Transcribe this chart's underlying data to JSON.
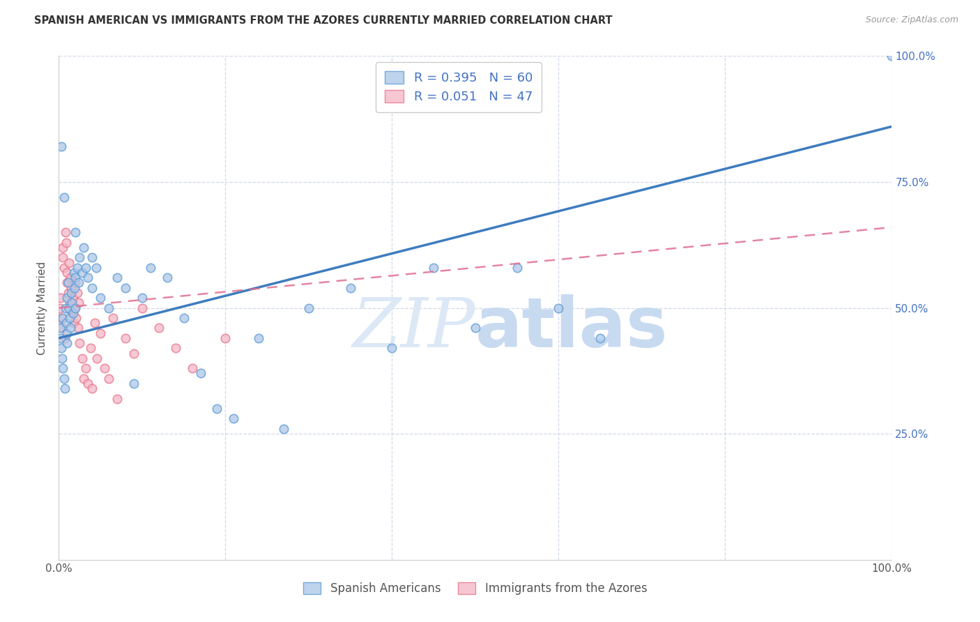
{
  "title": "SPANISH AMERICAN VS IMMIGRANTS FROM THE AZORES CURRENTLY MARRIED CORRELATION CHART",
  "source": "Source: ZipAtlas.com",
  "ylabel": "Currently Married",
  "right_yticks": [
    0.0,
    0.25,
    0.5,
    0.75,
    1.0
  ],
  "right_yticklabels": [
    "",
    "25.0%",
    "50.0%",
    "75.0%",
    "100.0%"
  ],
  "xticks": [
    0.0,
    0.2,
    0.4,
    0.6,
    0.8,
    1.0
  ],
  "xticklabels": [
    "0.0%",
    "",
    "",
    "",
    "",
    "100.0%"
  ],
  "blue_color": "#aec8e8",
  "blue_edge_color": "#5b9bd5",
  "pink_color": "#f4b8c8",
  "pink_edge_color": "#e8748a",
  "blue_line_color": "#3d7cbf",
  "pink_line_color": "#e07090",
  "legend_R_blue": "R = 0.395",
  "legend_N_blue": "N = 60",
  "legend_R_pink": "R = 0.051",
  "legend_N_pink": "N = 47",
  "legend_label_blue": "Spanish Americans",
  "legend_label_pink": "Immigrants from the Azores",
  "blue_scatter_x": [
    0.001,
    0.002,
    0.003,
    0.004,
    0.005,
    0.005,
    0.006,
    0.007,
    0.008,
    0.009,
    0.01,
    0.01,
    0.01,
    0.011,
    0.012,
    0.013,
    0.014,
    0.015,
    0.016,
    0.017,
    0.018,
    0.019,
    0.02,
    0.02,
    0.022,
    0.024,
    0.025,
    0.028,
    0.03,
    0.032,
    0.035,
    0.04,
    0.04,
    0.045,
    0.05,
    0.06,
    0.07,
    0.08,
    0.09,
    0.1,
    0.11,
    0.13,
    0.15,
    0.17,
    0.19,
    0.21,
    0.24,
    0.27,
    0.3,
    0.35,
    0.4,
    0.45,
    0.5,
    0.55,
    0.6,
    0.65,
    0.003,
    0.006,
    0.02,
    1.0
  ],
  "blue_scatter_y": [
    0.46,
    0.44,
    0.42,
    0.4,
    0.48,
    0.38,
    0.36,
    0.34,
    0.5,
    0.47,
    0.52,
    0.45,
    0.43,
    0.55,
    0.5,
    0.48,
    0.46,
    0.53,
    0.51,
    0.49,
    0.57,
    0.54,
    0.56,
    0.5,
    0.58,
    0.55,
    0.6,
    0.57,
    0.62,
    0.58,
    0.56,
    0.6,
    0.54,
    0.58,
    0.52,
    0.5,
    0.56,
    0.54,
    0.35,
    0.52,
    0.58,
    0.56,
    0.48,
    0.37,
    0.3,
    0.28,
    0.44,
    0.26,
    0.5,
    0.54,
    0.42,
    0.58,
    0.46,
    0.58,
    0.5,
    0.44,
    0.82,
    0.72,
    0.65,
    1.0
  ],
  "pink_scatter_x": [
    0.001,
    0.002,
    0.003,
    0.004,
    0.005,
    0.005,
    0.006,
    0.007,
    0.008,
    0.009,
    0.01,
    0.01,
    0.011,
    0.012,
    0.013,
    0.014,
    0.015,
    0.016,
    0.017,
    0.018,
    0.019,
    0.02,
    0.021,
    0.022,
    0.023,
    0.024,
    0.025,
    0.028,
    0.03,
    0.032,
    0.035,
    0.038,
    0.04,
    0.043,
    0.046,
    0.05,
    0.055,
    0.06,
    0.065,
    0.07,
    0.08,
    0.09,
    0.1,
    0.12,
    0.14,
    0.16,
    0.2
  ],
  "pink_scatter_y": [
    0.5,
    0.52,
    0.48,
    0.46,
    0.6,
    0.62,
    0.58,
    0.44,
    0.65,
    0.63,
    0.55,
    0.57,
    0.53,
    0.59,
    0.51,
    0.56,
    0.54,
    0.49,
    0.52,
    0.47,
    0.5,
    0.55,
    0.48,
    0.53,
    0.46,
    0.51,
    0.43,
    0.4,
    0.36,
    0.38,
    0.35,
    0.42,
    0.34,
    0.47,
    0.4,
    0.45,
    0.38,
    0.36,
    0.48,
    0.32,
    0.44,
    0.41,
    0.5,
    0.46,
    0.42,
    0.38,
    0.44
  ],
  "blue_line_x": [
    0.0,
    1.0
  ],
  "blue_line_y": [
    0.44,
    0.86
  ],
  "pink_line_x": [
    0.0,
    1.0
  ],
  "pink_line_y": [
    0.5,
    0.66
  ],
  "xlim": [
    0.0,
    1.0
  ],
  "ylim": [
    0.0,
    1.0
  ],
  "watermark_zip": "ZIP",
  "watermark_atlas": "atlas",
  "background_color": "#ffffff",
  "title_fontsize": 10.5,
  "axis_label_fontsize": 11,
  "tick_fontsize": 11,
  "right_tick_color": "#4472c4",
  "marker_size": 80,
  "grid_color": "#d0d8e8",
  "spine_color": "#cccccc"
}
